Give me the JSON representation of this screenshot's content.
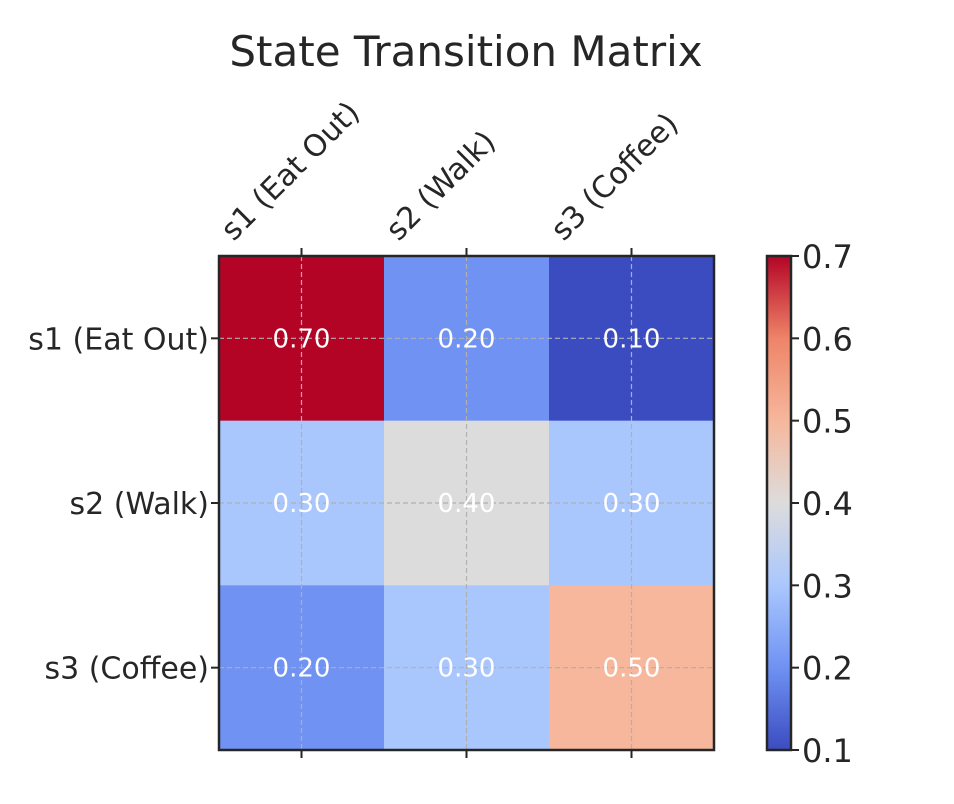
{
  "chart_data": {
    "type": "heatmap",
    "title": "State Transition Matrix",
    "x_categories": [
      "s1 (Eat Out)",
      "s2 (Walk)",
      "s3 (Coffee)"
    ],
    "y_categories": [
      "s1 (Eat Out)",
      "s2 (Walk)",
      "s3 (Coffee)"
    ],
    "values": [
      [
        0.7,
        0.2,
        0.1
      ],
      [
        0.3,
        0.4,
        0.3
      ],
      [
        0.2,
        0.3,
        0.5
      ]
    ],
    "cell_labels": [
      [
        "0.70",
        "0.20",
        "0.10"
      ],
      [
        "0.30",
        "0.40",
        "0.30"
      ],
      [
        "0.20",
        "0.30",
        "0.50"
      ]
    ],
    "colormap": "coolwarm",
    "colorbar": {
      "range": [
        0.1,
        0.7
      ],
      "ticks": [
        "0.1",
        "0.2",
        "0.3",
        "0.4",
        "0.5",
        "0.6",
        "0.7"
      ]
    },
    "colors": {
      "0.1": "#3b4cc0",
      "0.2": "#6f92f3",
      "0.3": "#aac7fd",
      "0.4": "#dddcdc",
      "0.5": "#f6b79c",
      "0.6": "#ee8468",
      "0.7": "#b40426"
    },
    "grid": true,
    "x_axis_position": "top"
  }
}
